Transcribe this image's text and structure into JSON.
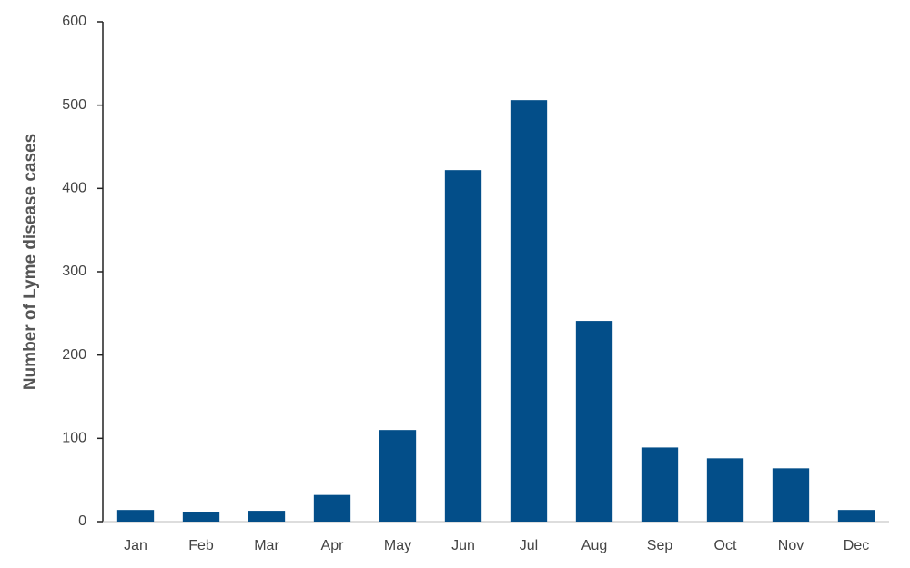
{
  "chart_data": {
    "type": "bar",
    "y_label": "Number of Lyme disease cases",
    "categories": [
      "Jan",
      "Feb",
      "Mar",
      "Apr",
      "May",
      "Jun",
      "Jul",
      "Aug",
      "Sep",
      "Oct",
      "Nov",
      "Dec"
    ],
    "values": [
      14,
      12,
      13,
      32,
      110,
      422,
      506,
      241,
      89,
      76,
      64,
      14
    ],
    "color": "#034e89",
    "ylim": [
      0,
      600
    ],
    "yticks": [
      0,
      100,
      200,
      300,
      400,
      500,
      600
    ],
    "grid": false
  }
}
